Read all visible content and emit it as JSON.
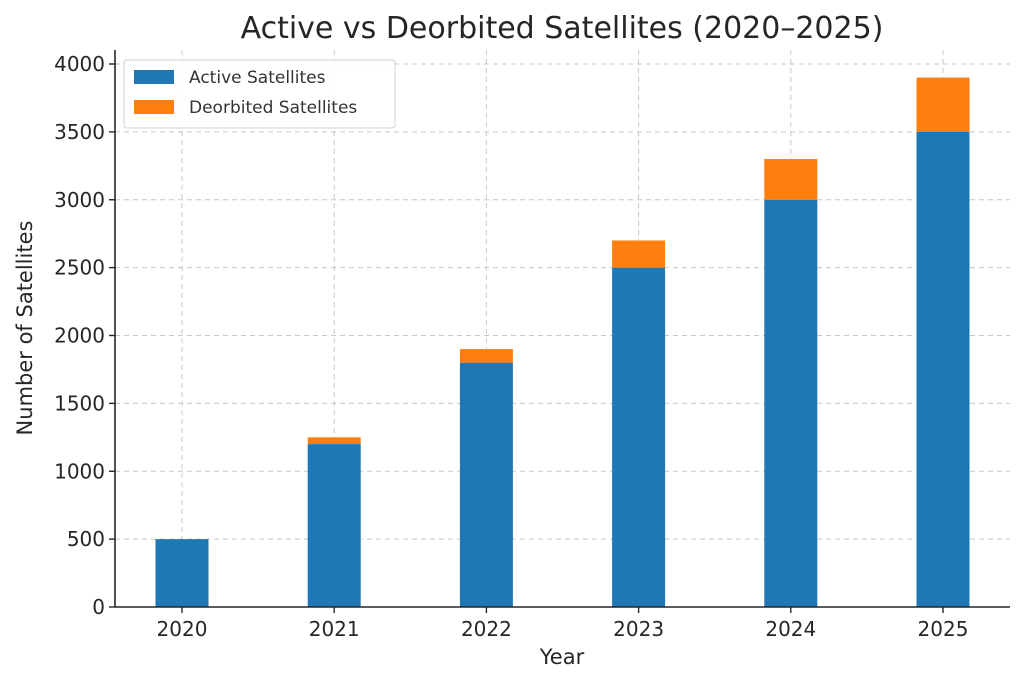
{
  "chart_data": {
    "type": "bar",
    "stacked": true,
    "title": "Active vs Deorbited Satellites (2020–2025)",
    "xlabel": "Year",
    "ylabel": "Number of Satellites",
    "categories": [
      "2020",
      "2021",
      "2022",
      "2023",
      "2024",
      "2025"
    ],
    "series": [
      {
        "name": "Active Satellites",
        "values": [
          500,
          1200,
          1800,
          2500,
          3000,
          3500
        ],
        "color": "#1f77b4"
      },
      {
        "name": "Deorbited Satellites",
        "values": [
          0,
          50,
          100,
          200,
          300,
          400
        ],
        "color": "#ff7f0e"
      }
    ],
    "ylim": [
      0,
      4000
    ],
    "yticks": [
      0,
      500,
      1000,
      1500,
      2000,
      2500,
      3000,
      3500,
      4000
    ],
    "grid": true,
    "legend_position": "top-left"
  }
}
